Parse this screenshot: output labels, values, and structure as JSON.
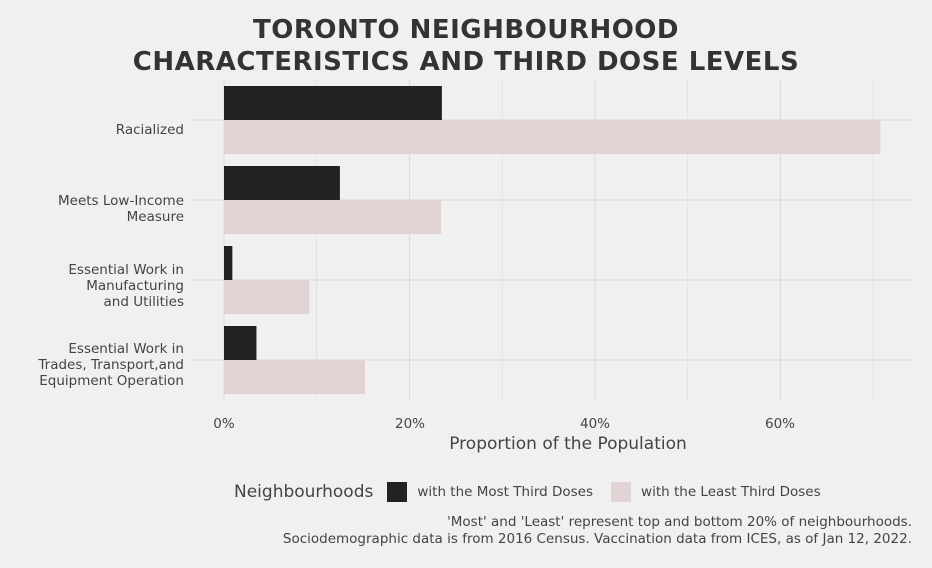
{
  "chart_data": {
    "type": "bar",
    "orientation": "horizontal",
    "title_lines": [
      "TORONTO NEIGHBOURHOOD",
      "CHARACTERISTICS AND THIRD DOSE LEVELS"
    ],
    "categories": [
      "Racialized",
      "Meets Low-Income\nMeasure",
      "Essential Work in\nManufacturing\nand Utilities",
      "Essential Work in\nTrades, Transport,and\nEquipment Operation"
    ],
    "series": [
      {
        "name": "with the Most Third Doses",
        "color": "#222222",
        "values": [
          23.5,
          12.5,
          0.9,
          3.5
        ]
      },
      {
        "name": "with the Least Third Doses",
        "color": "#e1d2d4",
        "values": [
          70.8,
          23.4,
          9.2,
          15.2
        ]
      }
    ],
    "x_ticks": [
      0,
      20,
      40,
      60
    ],
    "x_tick_labels": [
      "0%",
      "20%",
      "40%",
      "60%"
    ],
    "xlim": [
      0,
      74.2
    ],
    "xlabel": "Proportion of the Population",
    "grid": true,
    "legend_title": "Neighbourhoods",
    "legend_position": "bottom",
    "caption_lines": [
      "'Most' and 'Least' represent top and bottom 20% of neighbourhoods.",
      "Sociodemographic data is from 2016 Census. Vaccination data from ICES, as of Jan 12, 2022."
    ]
  },
  "colors": {
    "background": "#f0f0f0",
    "grid": "#d9d9d9",
    "text": "#333333"
  }
}
